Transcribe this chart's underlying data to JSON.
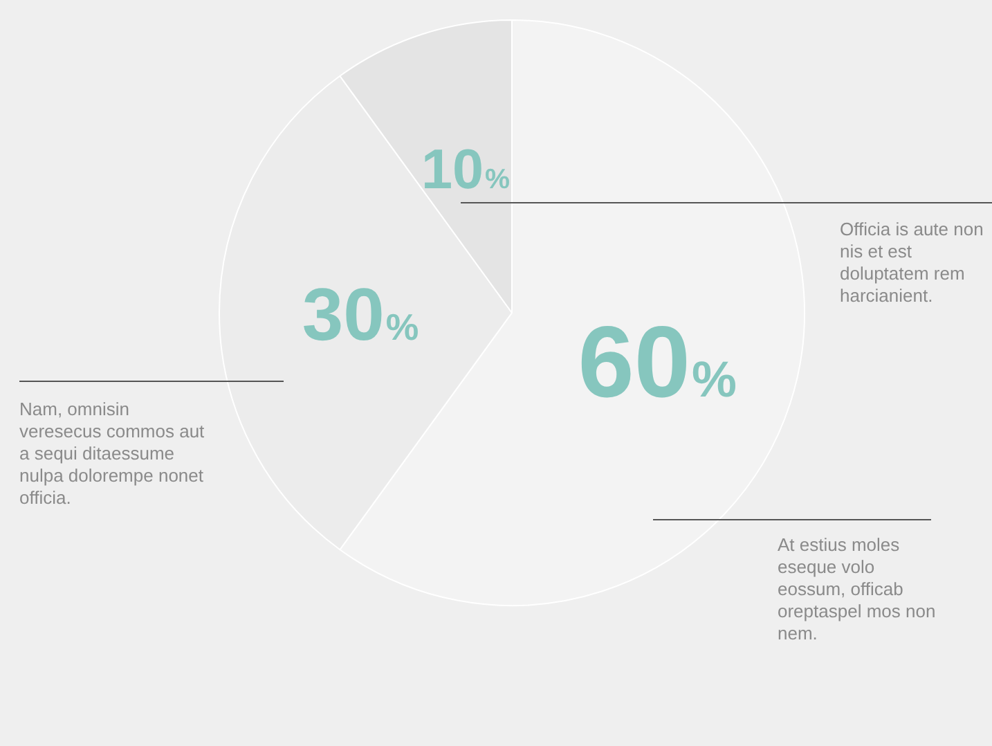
{
  "chart_data": {
    "type": "pie",
    "categories": [
      null,
      null,
      null
    ],
    "values": [
      60,
      30,
      10
    ],
    "colors": [
      "#f3f3f3",
      "#ececec",
      "#e4e4e4"
    ],
    "value_labels": [
      "60%",
      "30%",
      "10%"
    ],
    "legend": false,
    "annotations": [
      "Officia is aute non nis et est doluptatem rem harcianient.",
      "Nam, omnisin veresecus commos aut a sequi ditaessume nulpa dolorempe nonet officia.",
      "At estius moles eseque volo eossum, officab oreptaspel mos non nem."
    ]
  }
}
